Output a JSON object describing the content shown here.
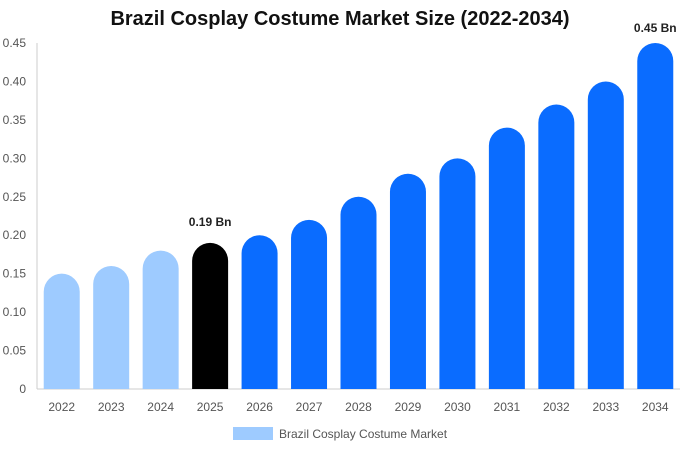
{
  "chart_data": {
    "type": "bar",
    "title": "Brazil Cosplay Costume Market Size (2022-2034)",
    "xlabel": "",
    "ylabel": "",
    "categories": [
      "2022",
      "2023",
      "2024",
      "2025",
      "2026",
      "2027",
      "2028",
      "2029",
      "2030",
      "2031",
      "2032",
      "2033",
      "2034"
    ],
    "values": [
      0.15,
      0.16,
      0.18,
      0.19,
      0.2,
      0.22,
      0.25,
      0.28,
      0.3,
      0.34,
      0.37,
      0.4,
      0.45
    ],
    "yticks": [
      {
        "value": 0,
        "label": "0"
      },
      {
        "value": 0.05,
        "label": "0.05"
      },
      {
        "value": 0.1,
        "label": "0.10"
      },
      {
        "value": 0.15,
        "label": "0.15"
      },
      {
        "value": 0.2,
        "label": "0.20"
      },
      {
        "value": 0.25,
        "label": "0.25"
      },
      {
        "value": 0.3,
        "label": "0.30"
      },
      {
        "value": 0.35,
        "label": "0.35"
      },
      {
        "value": 0.4,
        "label": "0.40"
      },
      {
        "value": 0.45,
        "label": "0.45"
      }
    ],
    "ylim": [
      0,
      0.45
    ],
    "grid": false,
    "legend": {
      "position": "bottom",
      "entries": [
        {
          "name": "Brazil Cosplay Costume Market",
          "color": "#9ecbff"
        }
      ]
    },
    "bar_colors": [
      "#9ecbff",
      "#9ecbff",
      "#9ecbff",
      "#000000",
      "#0a6cff",
      "#0a6cff",
      "#0a6cff",
      "#0a6cff",
      "#0a6cff",
      "#0a6cff",
      "#0a6cff",
      "#0a6cff",
      "#0a6cff"
    ],
    "annotations": [
      {
        "category": "2025",
        "text": "0.19 Bn"
      },
      {
        "category": "2034",
        "text": "0.45 Bn"
      }
    ]
  }
}
